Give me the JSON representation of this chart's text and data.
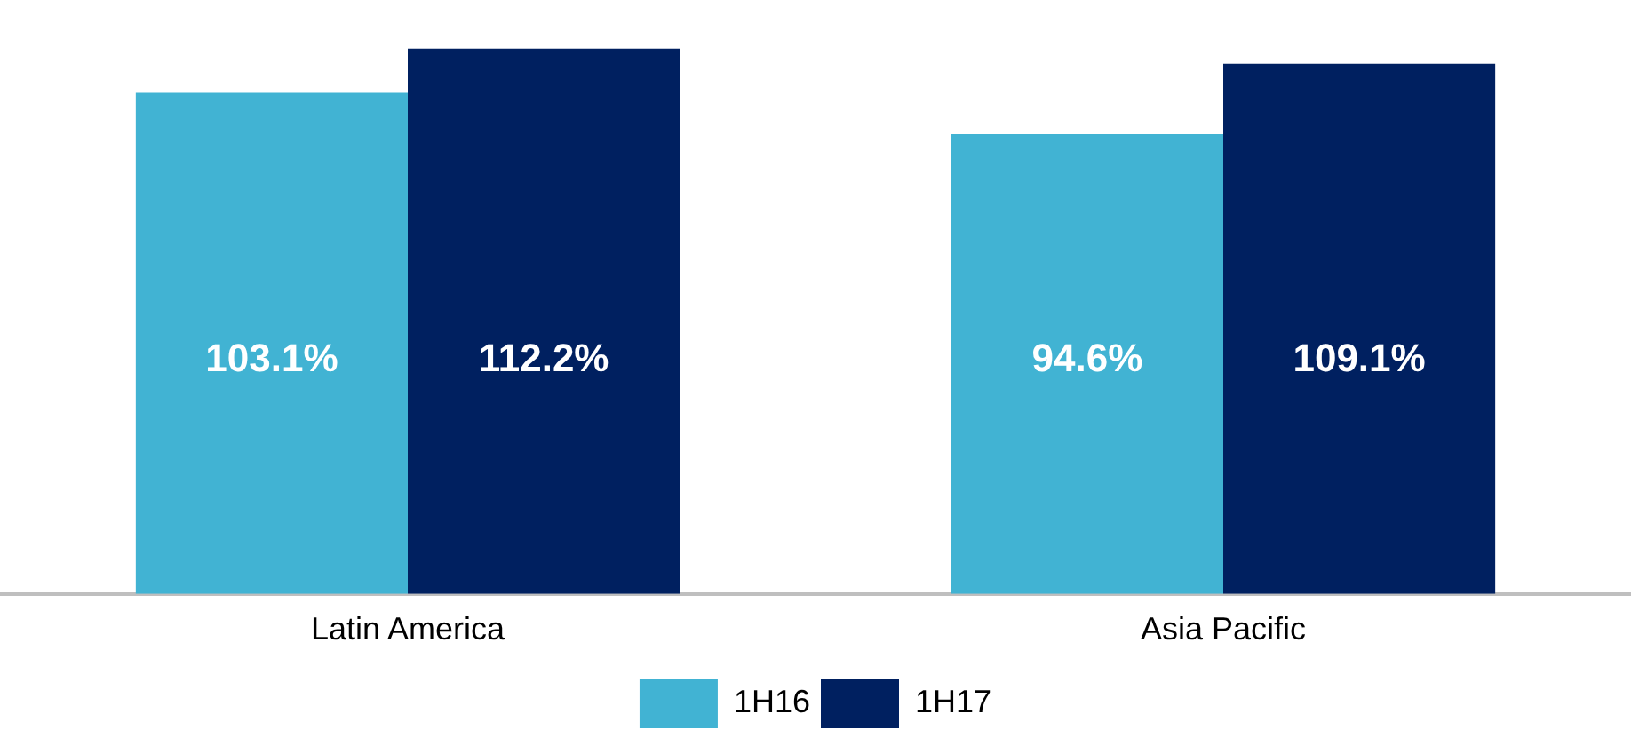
{
  "chart_data": {
    "type": "bar",
    "categories": [
      "Latin America",
      "Asia Pacific"
    ],
    "series": [
      {
        "name": "1H16",
        "color": "#41b3d3",
        "values": [
          103.1,
          94.6
        ],
        "value_labels": [
          "103.1%",
          "94.6%"
        ]
      },
      {
        "name": "1H17",
        "color": "#002060",
        "values": [
          112.2,
          109.1
        ],
        "value_labels": [
          "112.2%",
          "109.1%"
        ]
      }
    ],
    "tick_labels": "x",
    "grid": false,
    "legend": "bottom"
  }
}
